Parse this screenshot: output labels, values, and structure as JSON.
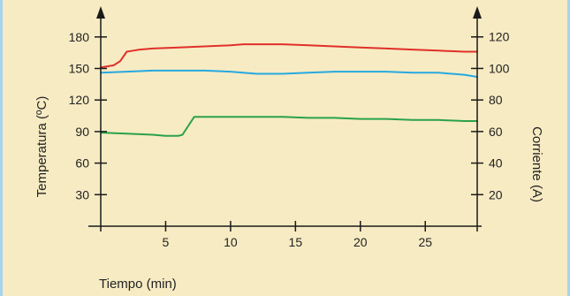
{
  "chart_data": {
    "type": "line",
    "title": "",
    "xlabel": "Tiempo (min)",
    "ylabel_left": "Temperatura (ºC)",
    "ylabel_right": "Corriente (A)",
    "x_ticks": [
      5,
      10,
      15,
      20,
      25
    ],
    "y_left_ticks": [
      30,
      60,
      90,
      120,
      150,
      180
    ],
    "y_right_ticks": [
      20,
      40,
      60,
      80,
      100,
      120
    ],
    "xlim": [
      0,
      29
    ],
    "ylim_left": [
      0,
      200
    ],
    "ylim_right": [
      0,
      133.3
    ],
    "grid": false,
    "legend": "none",
    "series": [
      {
        "axis": "left",
        "color": "#e0302a",
        "x": [
          0,
          0.5,
          1,
          1.5,
          2,
          2.5,
          3,
          4,
          6,
          8,
          10,
          11,
          12,
          14,
          16,
          18,
          20,
          22,
          24,
          26,
          28,
          29
        ],
        "y": [
          151,
          152,
          153,
          157,
          166,
          167,
          168,
          169,
          170,
          171,
          172,
          173,
          173,
          173,
          172,
          171,
          170,
          169,
          168,
          167,
          166,
          166
        ]
      },
      {
        "axis": "left",
        "color": "#26a9e0",
        "x": [
          0,
          2,
          4,
          6,
          8,
          10,
          12,
          13,
          14,
          16,
          18,
          20,
          22,
          24,
          26,
          28,
          29
        ],
        "y": [
          146,
          147,
          148,
          148,
          148,
          147,
          145,
          145,
          145,
          146,
          147,
          147,
          147,
          146,
          146,
          144,
          142
        ]
      },
      {
        "axis": "left",
        "color": "#2aa24a",
        "x": [
          0,
          2,
          4,
          5,
          5.5,
          6,
          6.3,
          7.2,
          8,
          10,
          12,
          14,
          16,
          18,
          20,
          22,
          24,
          26,
          28,
          29
        ],
        "y": [
          89,
          88,
          87,
          86,
          86,
          86,
          87,
          104,
          104,
          104,
          104,
          104,
          103,
          103,
          102,
          102,
          101,
          101,
          100,
          100
        ]
      }
    ]
  },
  "colors": {
    "background": "#f7ebc3",
    "axis": "#1a1a1a",
    "edge_strip": "#a8d3ee"
  }
}
